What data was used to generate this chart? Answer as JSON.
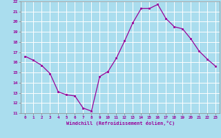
{
  "x": [
    0,
    1,
    2,
    3,
    4,
    5,
    6,
    7,
    8,
    9,
    10,
    11,
    12,
    13,
    14,
    15,
    16,
    17,
    18,
    19,
    20,
    21,
    22,
    23
  ],
  "y": [
    16.6,
    16.2,
    15.7,
    14.9,
    13.1,
    12.8,
    12.7,
    11.5,
    11.2,
    14.6,
    15.1,
    16.4,
    18.1,
    19.9,
    21.3,
    21.3,
    21.7,
    20.3,
    19.5,
    19.3,
    18.3,
    17.1,
    16.3,
    15.6
  ],
  "line_color": "#990099",
  "marker_color": "#990099",
  "bg_color": "#aaddee",
  "grid_color": "#ffffff",
  "axis_label_color": "#990099",
  "tick_label_color": "#990099",
  "xlabel": "Windchill (Refroidissement éolien,°C)",
  "xlim": [
    -0.5,
    23.5
  ],
  "ylim": [
    11,
    22
  ],
  "yticks": [
    11,
    12,
    13,
    14,
    15,
    16,
    17,
    18,
    19,
    20,
    21,
    22
  ],
  "xticks": [
    0,
    1,
    2,
    3,
    4,
    5,
    6,
    7,
    8,
    9,
    10,
    11,
    12,
    13,
    14,
    15,
    16,
    17,
    18,
    19,
    20,
    21,
    22,
    23
  ],
  "xtick_labels": [
    "0",
    "1",
    "2",
    "3",
    "4",
    "5",
    "6",
    "7",
    "8",
    "9",
    "10",
    "11",
    "12",
    "13",
    "14",
    "15",
    "16",
    "17",
    "18",
    "19",
    "20",
    "21",
    "22",
    "23"
  ]
}
